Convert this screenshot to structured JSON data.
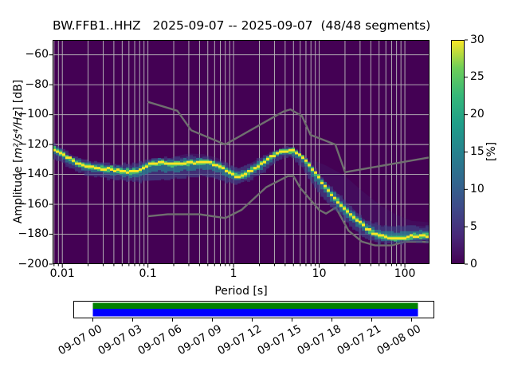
{
  "chart_data": {
    "type": "heatmap",
    "title": "BW.FFB1..HHZ   2025-09-07 -- 2025-09-07  (48/48 segments)",
    "xlabel": "Period [s]",
    "ylabel": {
      "prefix": "Amplitude [",
      "math": "m²/s⁴/Hz",
      "suffix": "] [dB]"
    },
    "xscale": "log",
    "xlim": [
      0.0077,
      194
    ],
    "ylim": [
      -200,
      -50
    ],
    "grid": true,
    "legend": false,
    "xticks": [
      0.01,
      0.1,
      1,
      10,
      100
    ],
    "xtick_labels": [
      "0.01",
      "0.1",
      "1",
      "10",
      "100"
    ],
    "yticks": [
      -60,
      -80,
      -100,
      -120,
      -140,
      -160,
      -180,
      -200
    ],
    "ytick_labels": [
      "−60",
      "−80",
      "−100",
      "−120",
      "−140",
      "−160",
      "−180",
      "−200"
    ],
    "colorbar": {
      "label": "[%]",
      "vmin": 0,
      "vmax": 30,
      "ticks": [
        0,
        5,
        10,
        15,
        20,
        25,
        30
      ],
      "tick_labels": [
        "0",
        "5",
        "10",
        "15",
        "20",
        "25",
        "30"
      ],
      "cmap": [
        "#440154",
        "#482878",
        "#3e4a89",
        "#31688e",
        "#26828e",
        "#1f9e89",
        "#35b779",
        "#6ece58",
        "#fde725"
      ]
    },
    "series": {
      "ppsd_mode_db": [
        [
          0.0077,
          -122.5
        ],
        [
          0.009,
          -124.5
        ],
        [
          0.0105,
          -127
        ],
        [
          0.0125,
          -130
        ],
        [
          0.015,
          -132.5
        ],
        [
          0.019,
          -134.5
        ],
        [
          0.025,
          -135.5
        ],
        [
          0.033,
          -136.3
        ],
        [
          0.045,
          -137.5
        ],
        [
          0.06,
          -138.7
        ],
        [
          0.075,
          -138
        ],
        [
          0.09,
          -135.5
        ],
        [
          0.11,
          -133
        ],
        [
          0.14,
          -132.2
        ],
        [
          0.18,
          -132.8
        ],
        [
          0.22,
          -133.2
        ],
        [
          0.28,
          -132.5
        ],
        [
          0.38,
          -131.6
        ],
        [
          0.48,
          -131.8
        ],
        [
          0.58,
          -132.8
        ],
        [
          0.72,
          -135.2
        ],
        [
          0.88,
          -138.3
        ],
        [
          1.05,
          -140.8
        ],
        [
          1.2,
          -141.3
        ],
        [
          1.4,
          -139.8
        ],
        [
          1.7,
          -136.8
        ],
        [
          2.1,
          -133
        ],
        [
          2.6,
          -129.3
        ],
        [
          3.3,
          -125.8
        ],
        [
          4.1,
          -124
        ],
        [
          4.9,
          -124.2
        ],
        [
          5.7,
          -126
        ],
        [
          6.6,
          -129
        ],
        [
          7.7,
          -133.5
        ],
        [
          9,
          -139
        ],
        [
          10.5,
          -144.5
        ],
        [
          12.5,
          -150
        ],
        [
          15,
          -155.5
        ],
        [
          18,
          -160.5
        ],
        [
          22,
          -165.5
        ],
        [
          27,
          -170
        ],
        [
          33,
          -174.5
        ],
        [
          40,
          -178
        ],
        [
          48,
          -180.5
        ],
        [
          58,
          -181.8
        ],
        [
          72,
          -182.3
        ],
        [
          90,
          -182.4
        ],
        [
          115,
          -181.6
        ],
        [
          145,
          -180.9
        ],
        [
          190,
          -180.7
        ]
      ],
      "ppsd_band_top_bottom_db": [
        [
          0.0077,
          -119,
          -129
        ],
        [
          0.01,
          -123,
          -132
        ],
        [
          0.014,
          -128,
          -137
        ],
        [
          0.02,
          -131,
          -141
        ],
        [
          0.03,
          -132,
          -142
        ],
        [
          0.05,
          -133.5,
          -144
        ],
        [
          0.08,
          -132,
          -145
        ],
        [
          0.12,
          -129,
          -144
        ],
        [
          0.2,
          -129,
          -143
        ],
        [
          0.3,
          -128,
          -142
        ],
        [
          0.5,
          -128.5,
          -141
        ],
        [
          0.8,
          -133,
          -145
        ],
        [
          1.1,
          -136,
          -146.5
        ],
        [
          1.5,
          -133,
          -144
        ],
        [
          2.2,
          -128,
          -139
        ],
        [
          3.2,
          -123.5,
          -131
        ],
        [
          4.5,
          -121.5,
          -128
        ],
        [
          6,
          -125,
          -133
        ],
        [
          8,
          -133,
          -145
        ],
        [
          12,
          -145,
          -158
        ],
        [
          18,
          -155,
          -168
        ],
        [
          25,
          -163,
          -176
        ],
        [
          35,
          -171,
          -183
        ],
        [
          50,
          -174,
          -186
        ],
        [
          80,
          -174.5,
          -186
        ],
        [
          120,
          -174,
          -185
        ],
        [
          190,
          -175,
          -185
        ]
      ],
      "nhnm_db": [
        [
          0.1,
          -91.5
        ],
        [
          0.22,
          -97.4
        ],
        [
          0.32,
          -110.5
        ],
        [
          0.8,
          -120
        ],
        [
          3.8,
          -98
        ],
        [
          4.6,
          -96.5
        ],
        [
          6.3,
          -101
        ],
        [
          7.9,
          -113.5
        ],
        [
          15.4,
          -120
        ],
        [
          20,
          -138.5
        ],
        [
          190,
          -128.7
        ]
      ],
      "nlnm_db": [
        [
          0.1,
          -168
        ],
        [
          0.17,
          -166.7
        ],
        [
          0.4,
          -166.7
        ],
        [
          0.8,
          -169.2
        ],
        [
          1.24,
          -163.7
        ],
        [
          2.4,
          -148.6
        ],
        [
          4.3,
          -141.1
        ],
        [
          5,
          -141.1
        ],
        [
          6,
          -149
        ],
        [
          10,
          -163.8
        ],
        [
          12,
          -166.2
        ],
        [
          15.6,
          -162.1
        ],
        [
          21.9,
          -177.5
        ],
        [
          31.6,
          -185
        ],
        [
          45,
          -187.5
        ],
        [
          70,
          -187.5
        ],
        [
          101,
          -185
        ],
        [
          154,
          -185
        ],
        [
          190,
          -185.3
        ]
      ],
      "faint_arc_poly": [
        [
          0.14,
          -132
        ],
        [
          0.2,
          -128
        ],
        [
          0.3,
          -126
        ],
        [
          0.45,
          -126.5
        ],
        [
          0.65,
          -129
        ],
        [
          0.9,
          -133
        ],
        [
          1.1,
          -137
        ],
        [
          1.1,
          -141
        ],
        [
          0.9,
          -139.5
        ],
        [
          0.65,
          -136.5
        ],
        [
          0.45,
          -133.5
        ],
        [
          0.3,
          -131
        ],
        [
          0.2,
          -131.5
        ],
        [
          0.14,
          -134
        ]
      ],
      "faint_fan_poly": [
        [
          5,
          -126
        ],
        [
          8,
          -130
        ],
        [
          12,
          -134
        ],
        [
          20,
          -141
        ],
        [
          30,
          -150
        ],
        [
          50,
          -160
        ],
        [
          80,
          -167
        ],
        [
          120,
          -171
        ],
        [
          190,
          -172
        ],
        [
          190,
          -180.7
        ],
        [
          145,
          -180.9
        ],
        [
          115,
          -181.6
        ],
        [
          90,
          -182.4
        ],
        [
          72,
          -182.3
        ],
        [
          58,
          -181.8
        ],
        [
          48,
          -180.5
        ],
        [
          40,
          -178
        ],
        [
          33,
          -174.5
        ],
        [
          27,
          -170
        ],
        [
          22,
          -165.5
        ],
        [
          18,
          -160.5
        ],
        [
          15,
          -155.5
        ],
        [
          12.5,
          -150
        ],
        [
          10.5,
          -144.5
        ],
        [
          9,
          -139
        ],
        [
          7.7,
          -133.5
        ],
        [
          6.6,
          -129
        ],
        [
          5.7,
          -126
        ],
        [
          5,
          -125
        ]
      ]
    },
    "coverage": {
      "time_tick_labels": [
        "09-07 00",
        "09-07 03",
        "09-07 06",
        "09-07 09",
        "09-07 12",
        "09-07 15",
        "09-07 18",
        "09-07 21",
        "09-08 00"
      ],
      "psd_segment_color": "#008000",
      "data_color": "#0000ff",
      "span_frac": [
        0.0,
        1.02
      ]
    },
    "colors": {
      "plot_bg": "#440154",
      "grid": "#bdbdbd",
      "noise_model": "#6f6f6f",
      "frame": "#000000",
      "mode": "#fde725",
      "band_outer": "#3f4788",
      "band_mid": "#26828e",
      "band_inner": "#4ac16d"
    }
  }
}
